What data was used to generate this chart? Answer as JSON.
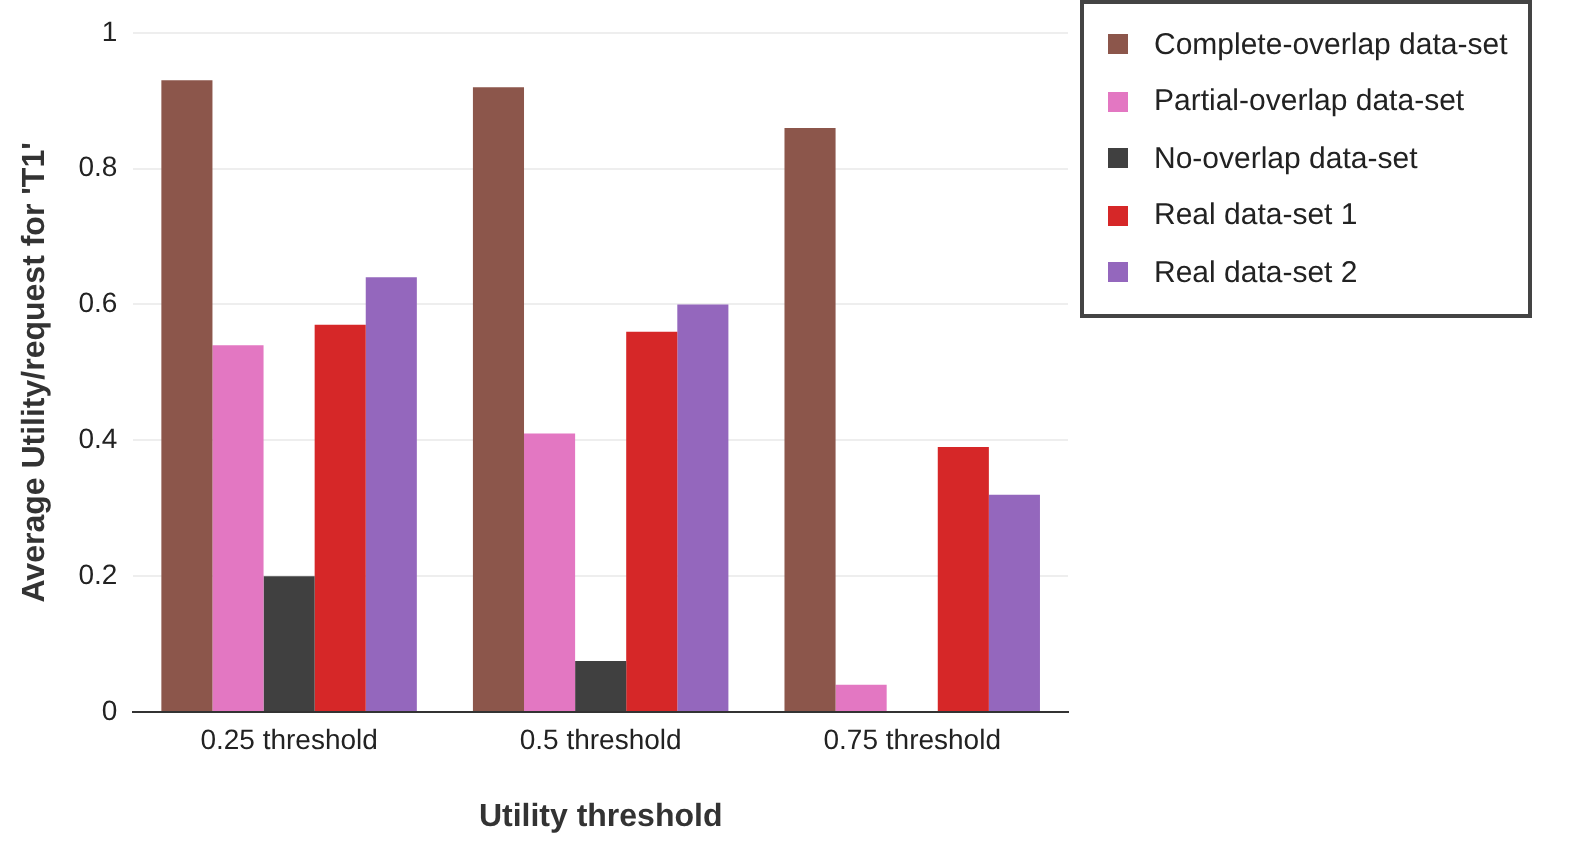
{
  "chart_data": {
    "type": "bar",
    "xlabel": "Utility threshold",
    "ylabel": "Average Utility/request for 'T1'",
    "categories": [
      "0.25 threshold",
      "0.5 threshold",
      "0.75 threshold"
    ],
    "series": [
      {
        "name": "Complete-overlap data-set",
        "color": "#8c564b",
        "values": [
          0.93,
          0.92,
          0.86
        ]
      },
      {
        "name": "Partial-overlap data-set",
        "color": "#e377c2",
        "values": [
          0.54,
          0.41,
          0.04
        ]
      },
      {
        "name": "No-overlap data-set",
        "color": "#404040",
        "values": [
          0.2,
          0.075,
          null
        ]
      },
      {
        "name": "Real data-set 1",
        "color": "#d62728",
        "values": [
          0.57,
          0.56,
          0.39
        ]
      },
      {
        "name": "Real data-set 2",
        "color": "#9467bd",
        "values": [
          0.64,
          0.6,
          0.32
        ]
      }
    ],
    "ylim": [
      0,
      1
    ],
    "yticks": [
      0,
      0.2,
      0.4,
      0.6,
      0.8,
      1
    ],
    "grid": "y",
    "legend": "top right"
  }
}
